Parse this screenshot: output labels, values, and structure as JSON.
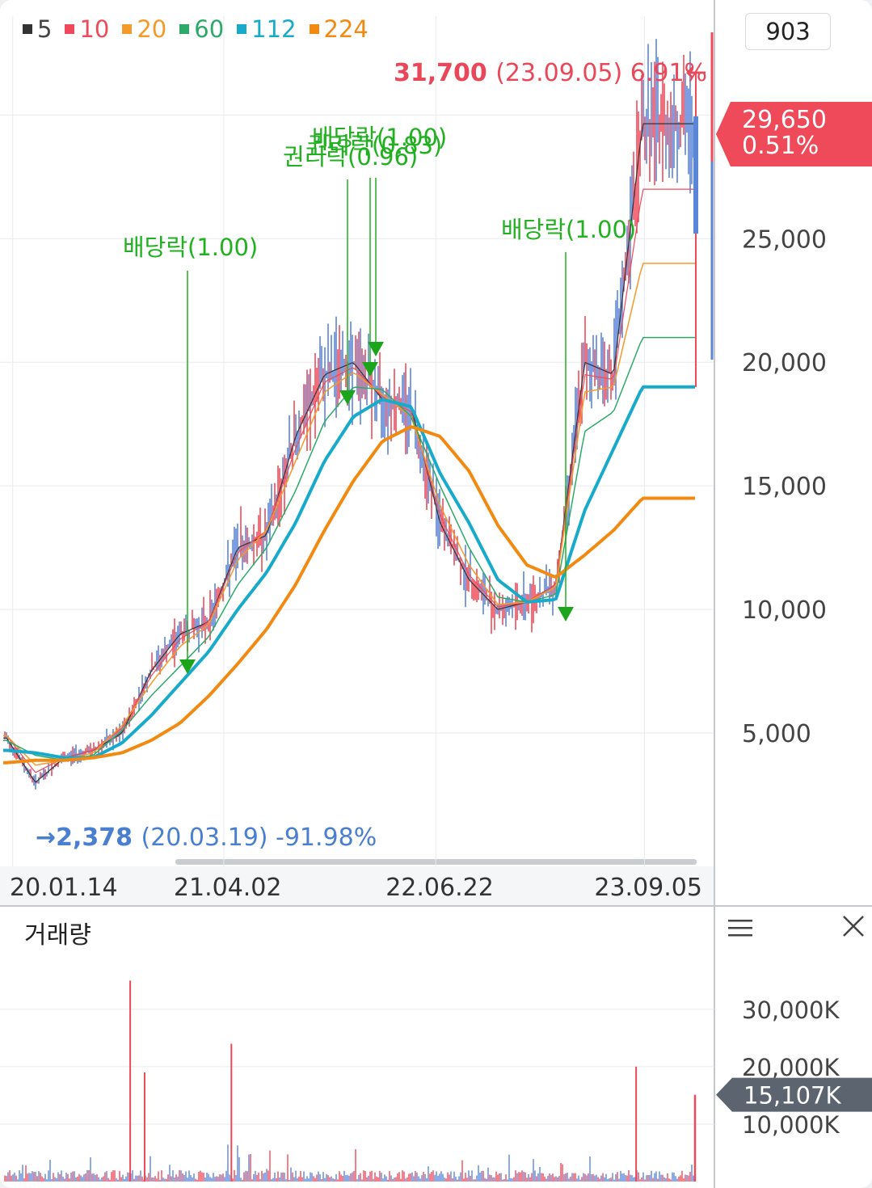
{
  "legend": [
    {
      "label": "5",
      "color": "#333333"
    },
    {
      "label": "10",
      "color": "#ef4a5a"
    },
    {
      "label": "20",
      "color": "#f39a2b"
    },
    {
      "label": "60",
      "color": "#2daa6a"
    },
    {
      "label": "112",
      "color": "#18aacb"
    },
    {
      "label": "224",
      "color": "#f28a12"
    }
  ],
  "zoom_value": "903",
  "high_annotation": {
    "value": "31,700",
    "detail": "(23.09.05) 6.91%",
    "arrow": "←"
  },
  "low_annotation": {
    "arrow": "→",
    "value": "2,378",
    "detail": "(20.03.19) -91.98%"
  },
  "current_price": {
    "price": "29,650",
    "change": "0.51%",
    "color": "#ef4a5a"
  },
  "current_volume": {
    "label": "15,107K",
    "color": "#5c6470"
  },
  "volume_panel": {
    "title": "거래량",
    "menu_icon": "hamburger-menu-icon",
    "close_icon": "close-x-icon"
  },
  "events": [
    {
      "label": "배당락(1.00)",
      "date": "21.01"
    },
    {
      "label": "권리락(0.96)",
      "date": "21.12"
    },
    {
      "label": "권리락(0.83)",
      "date": "22.01"
    },
    {
      "label": "배당락(1.00)",
      "date": "22.01"
    },
    {
      "label": "배당락(1.00)",
      "date": "22.12"
    }
  ],
  "colors": {
    "candle": "#5b86d8",
    "candle_alt": "#ef4a5a",
    "event": "#20b020",
    "high": "#e8485a",
    "low": "#4a7ed0",
    "grid": "#e8eaed",
    "axis_text": "#333333"
  },
  "chart_data": [
    {
      "type": "line",
      "title": "",
      "x_dates": [
        "20.01",
        "20.03",
        "20.05",
        "20.07",
        "20.09",
        "20.11",
        "21.01",
        "21.03",
        "21.05",
        "21.07",
        "21.09",
        "21.11",
        "22.01",
        "22.03",
        "22.05",
        "22.07",
        "22.09",
        "22.11",
        "23.01",
        "23.03",
        "23.05",
        "23.07",
        "23.09"
      ],
      "x_ticks": [
        "20.01.14",
        "21.04.02",
        "22.06.22",
        "23.09.05"
      ],
      "y_ticks": [
        "5,000",
        "10,000",
        "15,000",
        "20,000",
        "25,000"
      ],
      "ylim": [
        0,
        34000
      ],
      "series": [
        {
          "name": "5",
          "values": [
            4800,
            3000,
            4000,
            4300,
            5000,
            7500,
            9000,
            9500,
            12500,
            13000,
            17000,
            19500,
            20000,
            18500,
            18200,
            13500,
            11200,
            10000,
            10300,
            11000,
            20000,
            19500,
            29650
          ]
        },
        {
          "name": "10",
          "values": [
            4900,
            3400,
            4000,
            4300,
            5200,
            7300,
            8800,
            9500,
            12300,
            13200,
            16500,
            19200,
            19800,
            18600,
            18000,
            13800,
            11400,
            10100,
            10300,
            11000,
            19500,
            19300,
            27000
          ]
        },
        {
          "name": "20",
          "values": [
            4900,
            3700,
            3900,
            4200,
            5300,
            7000,
            8500,
            9400,
            12000,
            13200,
            16000,
            18800,
            19600,
            18700,
            17800,
            14200,
            11800,
            10200,
            10300,
            10900,
            18800,
            19000,
            24000
          ]
        },
        {
          "name": "60",
          "values": [
            4700,
            4100,
            3900,
            4100,
            5100,
            6500,
            7700,
            8900,
            11000,
            12500,
            14800,
            17600,
            19000,
            18900,
            17800,
            15000,
            12500,
            10500,
            10300,
            10600,
            17200,
            18000,
            21000
          ]
        },
        {
          "name": "112",
          "values": [
            4300,
            4200,
            4000,
            4000,
            4600,
            5700,
            7000,
            8300,
            10000,
            11500,
            13500,
            16000,
            17800,
            18500,
            18200,
            15500,
            13500,
            11200,
            10300,
            10400,
            14000,
            16500,
            19000
          ]
        },
        {
          "name": "224",
          "values": [
            3800,
            3900,
            3900,
            4000,
            4200,
            4700,
            5400,
            6500,
            7800,
            9200,
            11000,
            13200,
            15200,
            16800,
            17400,
            17000,
            15600,
            13400,
            11800,
            11300,
            12200,
            13200,
            14500
          ]
        }
      ],
      "high": {
        "date": "23.09.05",
        "value": 31700
      },
      "low": {
        "date": "20.03.19",
        "value": 2378
      },
      "last": 29650
    },
    {
      "type": "bar",
      "title": "거래량",
      "y_ticks": [
        "10,000K",
        "20,000K",
        "30,000K"
      ],
      "ylim_k": [
        0,
        38000
      ],
      "spikes_k": [
        {
          "date": "20.09",
          "value": 35000
        },
        {
          "date": "20.10",
          "value": 19000
        },
        {
          "date": "21.04",
          "value": 24000
        },
        {
          "date": "23.08",
          "value": 20000
        }
      ],
      "last_k": 15107
    }
  ]
}
